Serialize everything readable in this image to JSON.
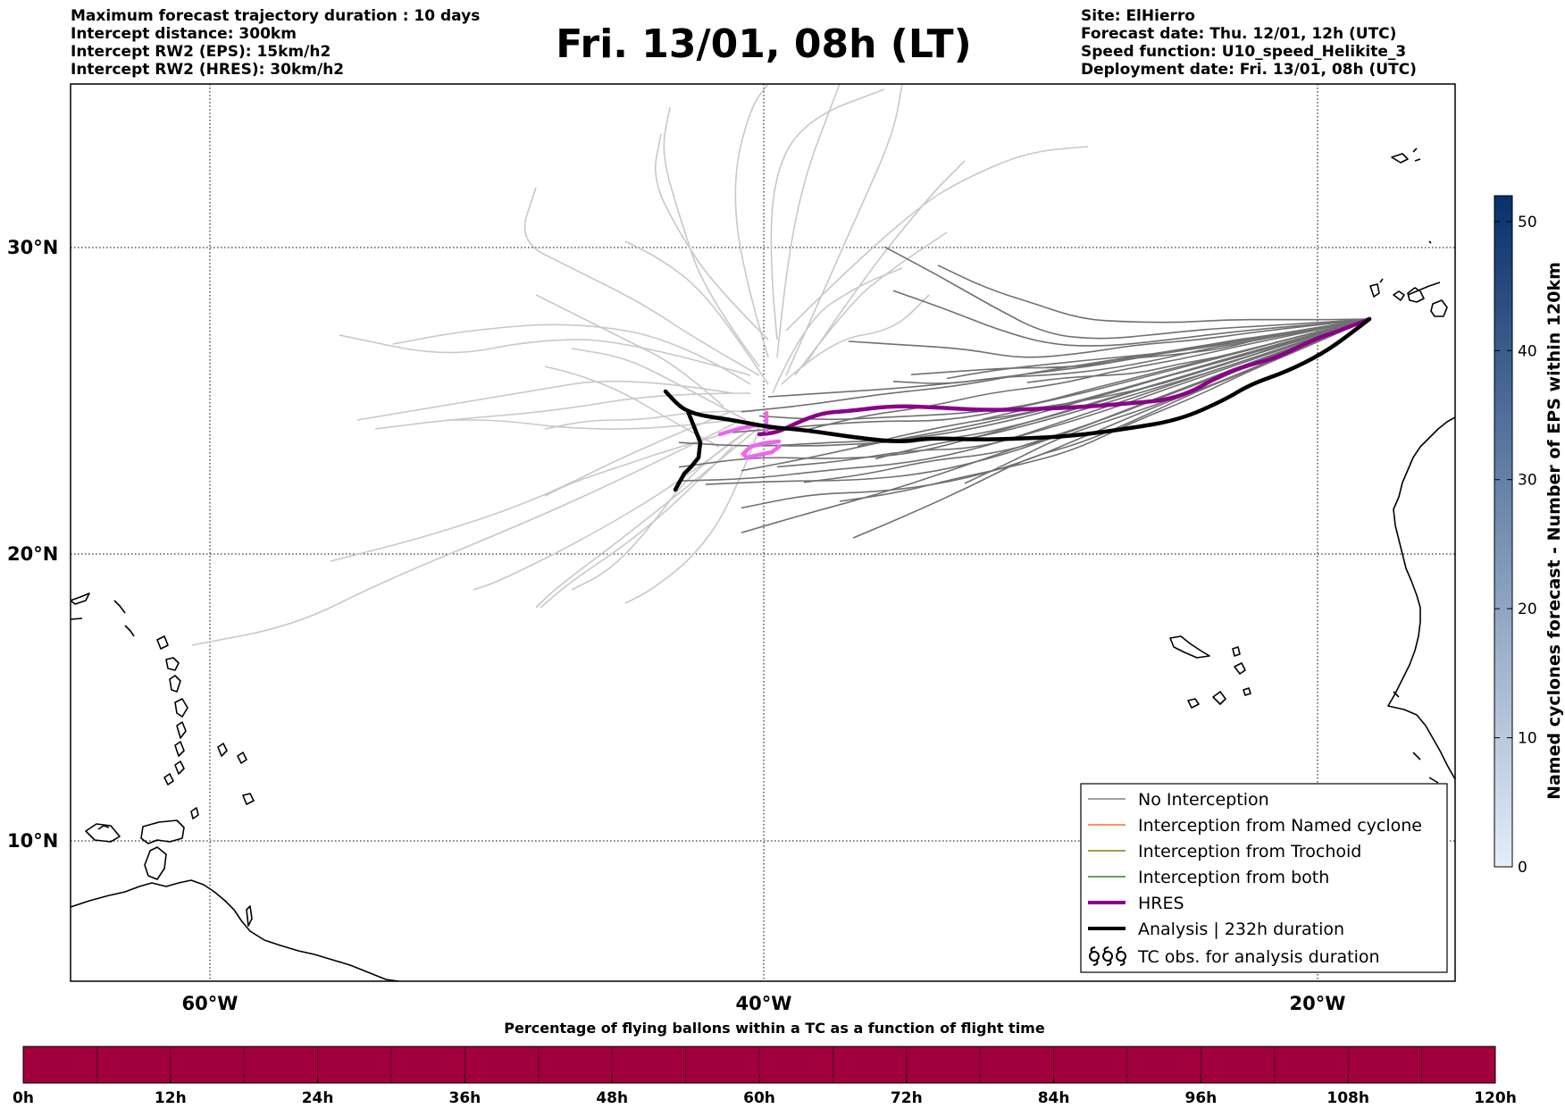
{
  "header": {
    "left_lines": [
      "Maximum forecast trajectory duration : 10 days",
      "Intercept distance: 300km",
      "Intercept RW2 (EPS):  15km/h2",
      "Intercept RW2 (HRES): 30km/h2"
    ],
    "title": "Fri. 13/01, 08h (LT)",
    "right_lines": [
      "Site: ElHierro",
      "Forecast date: Thu. 12/01, 12h (UTC)",
      "Speed function: U10_speed_Helikite_3",
      "Deployment date: Fri. 13/01, 08h (UTC)"
    ]
  },
  "map": {
    "lat_labels": [
      "30°N",
      "20°N",
      "10°N"
    ],
    "lon_labels": [
      "60°W",
      "40°W",
      "20°W"
    ],
    "lat_values": [
      30,
      20,
      10
    ],
    "lon_values": [
      -60,
      -40,
      -20
    ]
  },
  "legend": {
    "entries": [
      {
        "label": "No Interception",
        "color": "#808080",
        "width": 1.5,
        "icon": "line"
      },
      {
        "label": "Interception from Named cyclone",
        "color": "#ff6a30",
        "width": 1.5,
        "icon": "line"
      },
      {
        "label": "Interception from Trochoid",
        "color": "#808000",
        "width": 1.5,
        "icon": "line"
      },
      {
        "label": "Interception from both",
        "color": "#228b22",
        "width": 1.5,
        "icon": "line"
      },
      {
        "label": "HRES",
        "color": "#8b008b",
        "width": 4,
        "icon": "line"
      },
      {
        "label": "Analysis | 232h duration",
        "color": "#000000",
        "width": 4,
        "icon": "line"
      },
      {
        "label": "TC obs. for analysis duration",
        "color": "#000000",
        "width": 1,
        "icon": "cyclone-symbols"
      }
    ]
  },
  "colorbar_right": {
    "label": "Named cyclones forecast - Number of EPS within 120km",
    "ticks": [
      "0",
      "10",
      "20",
      "30",
      "40",
      "50"
    ],
    "tick_values": [
      0,
      10,
      20,
      30,
      40,
      50
    ],
    "max": 52,
    "color_low": "#e3eef9",
    "color_high": "#08306b"
  },
  "colorbar_bottom": {
    "title": "Percentage of flying ballons within a TC as a function of flight time",
    "ticks": [
      "0h",
      "12h",
      "24h",
      "36h",
      "48h",
      "60h",
      "72h",
      "84h",
      "96h",
      "108h",
      "120h"
    ],
    "fill_color": "#a1003c"
  },
  "colors": {
    "eps_no_intercept_outer": "#c8c8c8",
    "eps_no_intercept_inner": "#707070",
    "hres": "#8b008b",
    "hres_early": "#ee66ee",
    "analysis": "#000000",
    "coast": "#000000"
  }
}
